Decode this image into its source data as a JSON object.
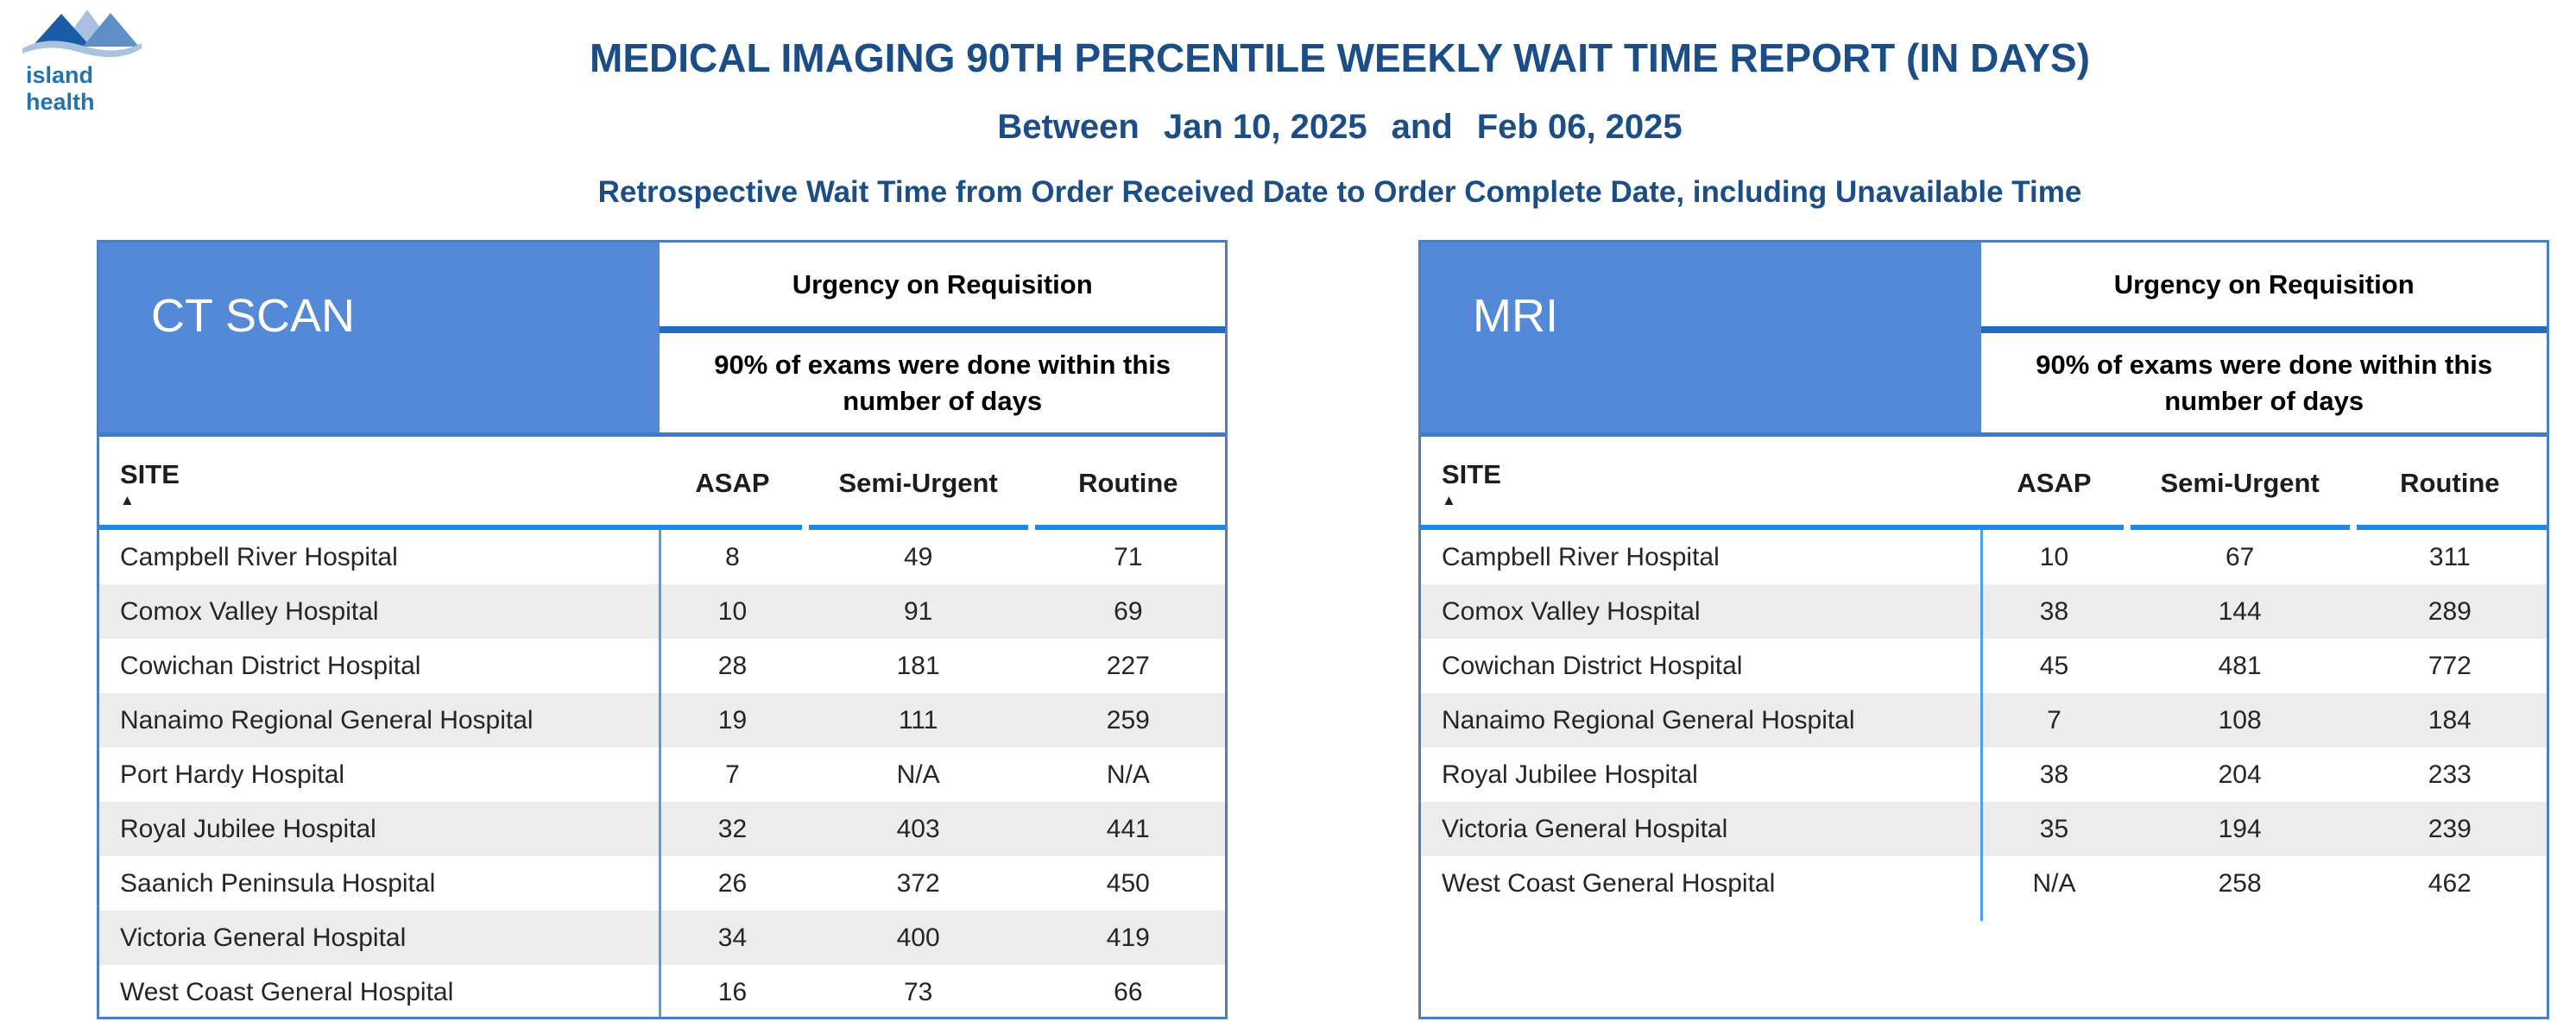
{
  "page": {
    "logo_text": "island health",
    "title": "MEDICAL IMAGING 90TH PERCENTILE WEEKLY WAIT TIME REPORT (IN DAYS)",
    "date_range": {
      "between_label": "Between",
      "start_date": "Jan 10, 2025",
      "and_label": "and",
      "end_date": "Feb 06, 2025"
    },
    "subtitle": "Retrospective Wait Time from Order Received Date to Order Complete Date, including Unavailable Time"
  },
  "chart_data": [
    {
      "type": "table",
      "modality": "CT SCAN",
      "urgency_header": "Urgency on Requisition",
      "subheader": "90% of exams were done within this number of days",
      "columns": [
        "SITE",
        "ASAP",
        "Semi-Urgent",
        "Routine"
      ],
      "sort_icon": "sort-ascending",
      "rows": [
        {
          "site": "Campbell River Hospital",
          "asap": "8",
          "semi_urgent": "49",
          "routine": "71"
        },
        {
          "site": "Comox Valley Hospital",
          "asap": "10",
          "semi_urgent": "91",
          "routine": "69"
        },
        {
          "site": "Cowichan District Hospital",
          "asap": "28",
          "semi_urgent": "181",
          "routine": "227"
        },
        {
          "site": "Nanaimo Regional General Hospital",
          "asap": "19",
          "semi_urgent": "111",
          "routine": "259"
        },
        {
          "site": "Port Hardy Hospital",
          "asap": "7",
          "semi_urgent": "N/A",
          "routine": "N/A"
        },
        {
          "site": "Royal Jubilee Hospital",
          "asap": "32",
          "semi_urgent": "403",
          "routine": "441"
        },
        {
          "site": "Saanich Peninsula Hospital",
          "asap": "26",
          "semi_urgent": "372",
          "routine": "450"
        },
        {
          "site": "Victoria General Hospital",
          "asap": "34",
          "semi_urgent": "400",
          "routine": "419"
        },
        {
          "site": "West Coast General Hospital",
          "asap": "16",
          "semi_urgent": "73",
          "routine": "66"
        }
      ]
    },
    {
      "type": "table",
      "modality": "MRI",
      "urgency_header": "Urgency on Requisition",
      "subheader": "90% of exams were done within this number of days",
      "columns": [
        "SITE",
        "ASAP",
        "Semi-Urgent",
        "Routine"
      ],
      "sort_icon": "sort-ascending",
      "rows": [
        {
          "site": "Campbell River Hospital",
          "asap": "10",
          "semi_urgent": "67",
          "routine": "311"
        },
        {
          "site": "Comox Valley Hospital",
          "asap": "38",
          "semi_urgent": "144",
          "routine": "289"
        },
        {
          "site": "Cowichan District Hospital",
          "asap": "45",
          "semi_urgent": "481",
          "routine": "772"
        },
        {
          "site": "Nanaimo Regional General Hospital",
          "asap": "7",
          "semi_urgent": "108",
          "routine": "184"
        },
        {
          "site": "Royal Jubilee Hospital",
          "asap": "38",
          "semi_urgent": "204",
          "routine": "233"
        },
        {
          "site": "Victoria General Hospital",
          "asap": "35",
          "semi_urgent": "194",
          "routine": "239"
        },
        {
          "site": "West Coast General Hospital",
          "asap": "N/A",
          "semi_urgent": "258",
          "routine": "462"
        }
      ]
    }
  ],
  "colors": {
    "title_navy": "#1B4E86",
    "accent_blue": "#5389D7",
    "table_border": "#4C7EC0",
    "header_underline": "#1E88E5",
    "divider_blue": "#1F6BC0",
    "thead_bottom": "#3F7BCB",
    "vline_blue": "#4D9FE8",
    "row_alt_gray": "#ECECEC",
    "cell_text": "#252525",
    "logo_text_blue": "#2272AE",
    "mountain_dark": "#1A5DA6",
    "mountain_light": "#A9C0DE",
    "mountain_mid": "#5E90C6",
    "wave_blue": "#A9C3DF"
  }
}
